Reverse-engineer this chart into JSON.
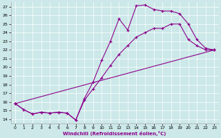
{
  "xlabel": "Windchill (Refroidissement éolien,°C)",
  "bg_color": "#cce8e8",
  "line_color": "#8b008b",
  "xlim": [
    -0.5,
    23.5
  ],
  "ylim": [
    13.5,
    27.5
  ],
  "xticks": [
    0,
    1,
    2,
    3,
    4,
    5,
    6,
    7,
    8,
    9,
    10,
    11,
    12,
    13,
    14,
    15,
    16,
    17,
    18,
    19,
    20,
    21,
    22,
    23
  ],
  "yticks": [
    14,
    15,
    16,
    17,
    18,
    19,
    20,
    21,
    22,
    23,
    24,
    25,
    26,
    27
  ],
  "series1": [
    [
      0,
      15.8
    ],
    [
      1,
      15.1
    ],
    [
      2,
      14.6
    ],
    [
      3,
      14.8
    ],
    [
      4,
      14.7
    ],
    [
      5,
      14.8
    ],
    [
      6,
      14.7
    ],
    [
      7,
      13.9
    ],
    [
      8,
      16.4
    ],
    [
      9,
      18.3
    ],
    [
      10,
      20.8
    ],
    [
      11,
      23.0
    ],
    [
      12,
      25.6
    ],
    [
      13,
      24.3
    ],
    [
      14,
      27.1
    ],
    [
      15,
      27.2
    ],
    [
      16,
      26.7
    ],
    [
      17,
      26.5
    ],
    [
      18,
      26.5
    ],
    [
      19,
      26.2
    ],
    [
      20,
      25.0
    ],
    [
      21,
      23.2
    ],
    [
      22,
      22.2
    ],
    [
      23,
      22.0
    ]
  ],
  "series2": [
    [
      0,
      15.8
    ],
    [
      1,
      15.1
    ],
    [
      2,
      14.6
    ],
    [
      3,
      14.8
    ],
    [
      4,
      14.7
    ],
    [
      5,
      14.8
    ],
    [
      6,
      14.7
    ],
    [
      7,
      13.9
    ],
    [
      8,
      16.2
    ],
    [
      9,
      17.5
    ],
    [
      10,
      18.8
    ],
    [
      11,
      20.2
    ],
    [
      12,
      21.5
    ],
    [
      13,
      22.5
    ],
    [
      14,
      23.5
    ],
    [
      15,
      24.0
    ],
    [
      16,
      24.5
    ],
    [
      17,
      24.5
    ],
    [
      18,
      25.0
    ],
    [
      19,
      25.0
    ],
    [
      20,
      23.2
    ],
    [
      21,
      22.5
    ],
    [
      22,
      22.0
    ],
    [
      23,
      22.0
    ]
  ],
  "series3": [
    [
      0,
      15.8
    ],
    [
      23,
      22.0
    ]
  ]
}
